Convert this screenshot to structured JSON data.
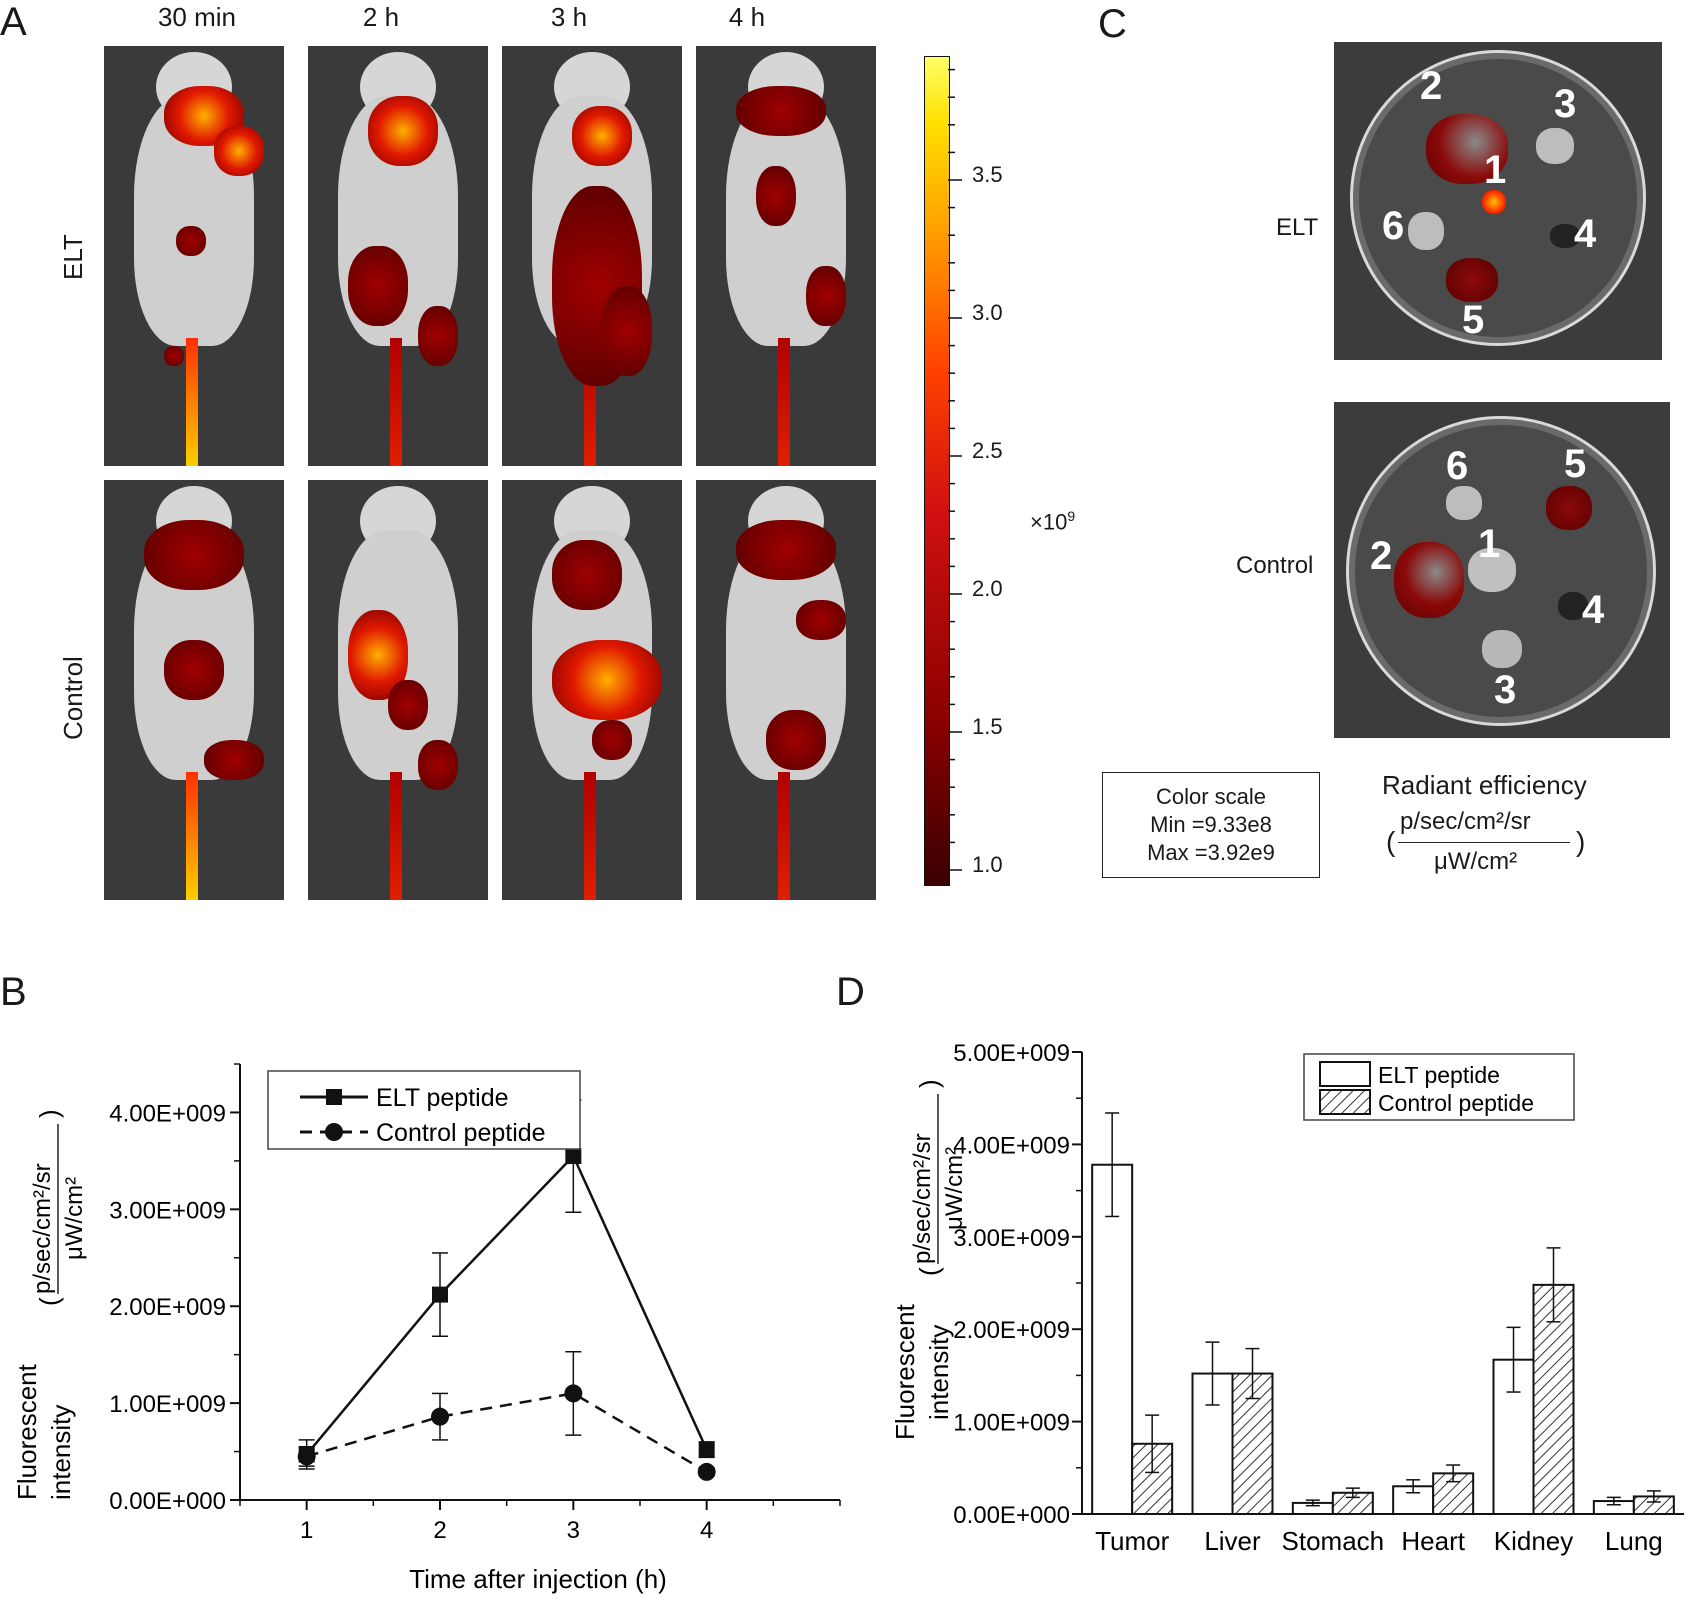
{
  "panels": {
    "a": "A",
    "b": "B",
    "c": "C",
    "d": "D"
  },
  "panel_a": {
    "time_labels": [
      "30 min",
      "2 h",
      "3 h",
      "4 h"
    ],
    "row_labels": [
      "ELT",
      "Control"
    ],
    "colorbar": {
      "ticks": [
        "3.5",
        "3.0",
        "2.5",
        "2.0",
        "1.5",
        "1.0"
      ],
      "multiplier": "×10",
      "exponent": "9",
      "colors": [
        "#3a0000",
        "#8b0000",
        "#d01010",
        "#ff4000",
        "#ff9a00",
        "#ffe000",
        "#ffff66"
      ]
    }
  },
  "panel_c": {
    "row_labels": [
      "ELT",
      "Control"
    ],
    "elt_numbers": [
      "1",
      "2",
      "3",
      "4",
      "5",
      "6"
    ],
    "control_numbers": [
      "1",
      "2",
      "3",
      "4",
      "5",
      "6"
    ],
    "color_scale": {
      "title": "Color scale",
      "min": "Min =9.33e8",
      "max": "Max =3.92e9"
    },
    "radiant": {
      "title": "Radiant efficiency",
      "numerator": "p/sec/cm²/sr",
      "denominator": "μW/cm²"
    }
  },
  "chart_data": [
    {
      "type": "line",
      "panel": "B",
      "xlabel": "Time after injection (h)",
      "ylabel_line1": "Fluorescent",
      "ylabel_line2": "intensity",
      "ylabel_num": "p/sec/cm²/sr",
      "ylabel_den": "μW/cm²",
      "x": [
        1,
        2,
        3,
        4
      ],
      "x_ticks": [
        "1",
        "2",
        "3",
        "4"
      ],
      "y_ticks": [
        "0.00E+000",
        "1.00E+009",
        "2.00E+009",
        "3.00E+009",
        "4.00E+009"
      ],
      "xlim": [
        0.5,
        5.0
      ],
      "ylim": [
        0,
        4500000000.0
      ],
      "series": [
        {
          "name": "ELT peptide",
          "values": [
            470000000.0,
            2120000000.0,
            3550000000.0,
            520000000.0
          ],
          "errors": [
            150000000.0,
            430000000.0,
            580000000.0,
            80000000.0
          ],
          "style": "solid",
          "marker": "square"
        },
        {
          "name": "Control peptide",
          "values": [
            450000000.0,
            860000000.0,
            1100000000.0,
            290000000.0
          ],
          "errors": [
            100000000.0,
            240000000.0,
            430000000.0,
            40000000.0
          ],
          "style": "dashed",
          "marker": "circle"
        }
      ],
      "legend": "top-center"
    },
    {
      "type": "bar",
      "panel": "D",
      "ylabel_line1": "Fluorescent",
      "ylabel_line2": "intensity",
      "ylabel_num": "p/sec/cm²/sr",
      "ylabel_den": "μW/cm²",
      "categories": [
        "Tumor",
        "Liver",
        "Stomach",
        "Heart",
        "Kidney",
        "Lung"
      ],
      "y_ticks": [
        "0.00E+000",
        "1.00E+009",
        "2.00E+009",
        "3.00E+009",
        "4.00E+009",
        "5.00E+009"
      ],
      "ylim": [
        0,
        5000000000.0
      ],
      "series": [
        {
          "name": "ELT peptide",
          "values": [
            3780000000.0,
            1520000000.0,
            120000000.0,
            300000000.0,
            1670000000.0,
            140000000.0
          ],
          "errors": [
            560000000.0,
            340000000.0,
            30000000.0,
            70000000.0,
            350000000.0,
            40000000.0
          ],
          "fill": "white"
        },
        {
          "name": "Control peptide",
          "values": [
            760000000.0,
            1520000000.0,
            230000000.0,
            440000000.0,
            2480000000.0,
            190000000.0
          ],
          "errors": [
            310000000.0,
            270000000.0,
            50000000.0,
            90000000.0,
            400000000.0,
            60000000.0
          ],
          "fill": "hatched"
        }
      ],
      "legend": "top-right"
    }
  ]
}
